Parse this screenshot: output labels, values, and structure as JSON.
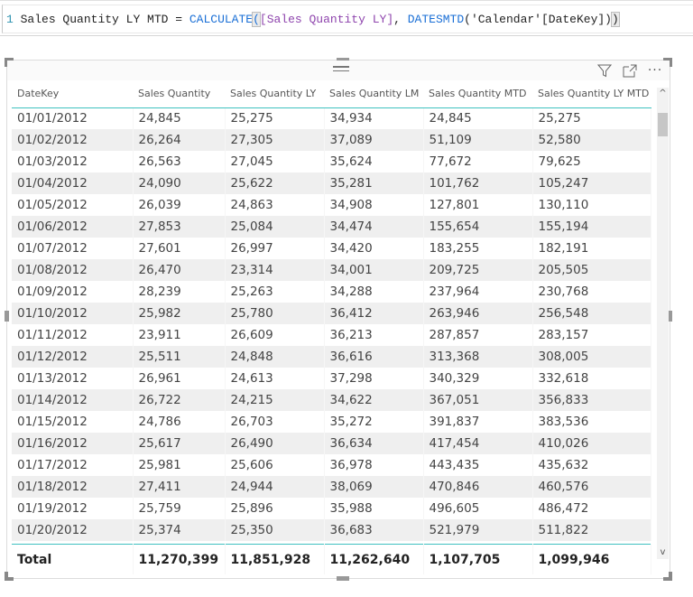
{
  "formula": {
    "line_number": "1",
    "measure_name": "Sales Quantity LY MTD",
    "equals": " = ",
    "func1": "CALCULATE",
    "open_paren": "(",
    "arg_measure": "[Sales Quantity LY]",
    "comma": ", ",
    "func2": "DATESMTD",
    "func2_args": "('Calendar'[DateKey])",
    "close_paren": ")"
  },
  "visual": {
    "icons": [
      "filter-icon",
      "focus-mode-icon",
      "more-options-icon"
    ],
    "more_label": "···",
    "accent_color": "#3fc1c0"
  },
  "table": {
    "columns": [
      "DateKey",
      "Sales Quantity",
      "Sales Quantity LY",
      "Sales Quantity LM",
      "Sales Quantity MTD",
      "Sales Quantity LY MTD"
    ],
    "rows": [
      [
        "01/01/2012",
        "24,845",
        "25,275",
        "34,934",
        "24,845",
        "25,275"
      ],
      [
        "01/02/2012",
        "26,264",
        "27,305",
        "37,089",
        "51,109",
        "52,580"
      ],
      [
        "01/03/2012",
        "26,563",
        "27,045",
        "35,624",
        "77,672",
        "79,625"
      ],
      [
        "01/04/2012",
        "24,090",
        "25,622",
        "35,281",
        "101,762",
        "105,247"
      ],
      [
        "01/05/2012",
        "26,039",
        "24,863",
        "34,908",
        "127,801",
        "130,110"
      ],
      [
        "01/06/2012",
        "27,853",
        "25,084",
        "34,474",
        "155,654",
        "155,194"
      ],
      [
        "01/07/2012",
        "27,601",
        "26,997",
        "34,420",
        "183,255",
        "182,191"
      ],
      [
        "01/08/2012",
        "26,470",
        "23,314",
        "34,001",
        "209,725",
        "205,505"
      ],
      [
        "01/09/2012",
        "28,239",
        "25,263",
        "34,288",
        "237,964",
        "230,768"
      ],
      [
        "01/10/2012",
        "25,982",
        "25,780",
        "36,412",
        "263,946",
        "256,548"
      ],
      [
        "01/11/2012",
        "23,911",
        "26,609",
        "36,213",
        "287,857",
        "283,157"
      ],
      [
        "01/12/2012",
        "25,511",
        "24,848",
        "36,616",
        "313,368",
        "308,005"
      ],
      [
        "01/13/2012",
        "26,961",
        "24,613",
        "37,298",
        "340,329",
        "332,618"
      ],
      [
        "01/14/2012",
        "26,722",
        "24,215",
        "34,622",
        "367,051",
        "356,833"
      ],
      [
        "01/15/2012",
        "24,786",
        "26,703",
        "35,272",
        "391,837",
        "383,536"
      ],
      [
        "01/16/2012",
        "25,617",
        "26,490",
        "36,634",
        "417,454",
        "410,026"
      ],
      [
        "01/17/2012",
        "25,981",
        "25,606",
        "36,978",
        "443,435",
        "435,632"
      ],
      [
        "01/18/2012",
        "27,411",
        "24,944",
        "38,069",
        "470,846",
        "460,576"
      ],
      [
        "01/19/2012",
        "25,759",
        "25,896",
        "35,988",
        "496,605",
        "486,472"
      ],
      [
        "01/20/2012",
        "25,374",
        "25,350",
        "36,683",
        "521,979",
        "511,822"
      ]
    ],
    "total": [
      "Total",
      "11,270,399",
      "11,851,928",
      "11,262,640",
      "1,107,705",
      "1,099,946"
    ]
  },
  "scrollbar": {
    "up_glyph": "^",
    "down_glyph": "v"
  }
}
